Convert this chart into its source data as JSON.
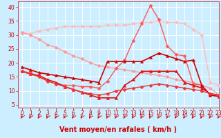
{
  "title": "",
  "xlabel": "Vent moyen/en rafales ( km/h )",
  "bg_color": "#cceeff",
  "grid_color": "#ffffff",
  "xlim": [
    -0.5,
    23
  ],
  "ylim": [
    4,
    42
  ],
  "yticks": [
    5,
    10,
    15,
    20,
    25,
    30,
    35,
    40
  ],
  "xticks": [
    0,
    1,
    2,
    3,
    4,
    5,
    6,
    7,
    8,
    9,
    10,
    11,
    12,
    13,
    14,
    15,
    16,
    17,
    18,
    19,
    20,
    21,
    22,
    23
  ],
  "series": [
    {
      "x": [
        0,
        1,
        2,
        3,
        4,
        5,
        6,
        7,
        8,
        9,
        10,
        11,
        12,
        13,
        14,
        15,
        16,
        17,
        18,
        19,
        20,
        21,
        22,
        23
      ],
      "y": [
        30.5,
        30.5,
        31.5,
        32.0,
        32.5,
        33.0,
        33.0,
        33.0,
        33.0,
        33.0,
        33.5,
        33.5,
        33.5,
        34.0,
        34.5,
        34.5,
        35.0,
        34.5,
        34.5,
        34.0,
        32.0,
        30.0,
        13.0,
        12.0
      ],
      "color": "#ffbbbb",
      "marker": "D",
      "markersize": 2.5,
      "linewidth": 1.0
    },
    {
      "x": [
        0,
        1,
        2,
        3,
        4,
        5,
        6,
        7,
        8,
        9,
        10,
        11,
        12,
        13,
        14,
        15,
        16,
        17,
        18,
        19,
        20,
        21,
        22,
        23
      ],
      "y": [
        31.0,
        30.0,
        28.5,
        26.5,
        25.5,
        24.0,
        22.5,
        21.5,
        20.0,
        19.0,
        18.5,
        18.0,
        17.5,
        17.0,
        16.5,
        16.0,
        15.5,
        15.0,
        14.0,
        13.5,
        13.0,
        12.0,
        11.0,
        8.5
      ],
      "color": "#ff9999",
      "marker": "D",
      "markersize": 2.5,
      "linewidth": 1.0
    },
    {
      "x": [
        0,
        1,
        2,
        3,
        4,
        5,
        6,
        7,
        8,
        9,
        10,
        11,
        12,
        13,
        14,
        15,
        16,
        17,
        18,
        19,
        20,
        21,
        22,
        23
      ],
      "y": [
        17.0,
        16.5,
        15.0,
        13.5,
        12.5,
        12.0,
        12.0,
        11.5,
        11.5,
        11.0,
        13.5,
        18.0,
        21.0,
        28.0,
        34.0,
        40.5,
        35.5,
        26.0,
        23.0,
        22.5,
        12.5,
        12.0,
        8.5,
        8.0
      ],
      "color": "#ff5555",
      "marker": "D",
      "markersize": 2.5,
      "linewidth": 1.0
    },
    {
      "x": [
        0,
        1,
        2,
        3,
        4,
        5,
        6,
        7,
        8,
        9,
        10,
        11,
        12,
        13,
        14,
        15,
        16,
        17,
        18,
        19,
        20,
        21,
        22,
        23
      ],
      "y": [
        18.5,
        17.5,
        16.5,
        16.0,
        15.5,
        15.0,
        14.5,
        14.0,
        13.5,
        13.0,
        20.5,
        20.5,
        20.5,
        20.5,
        20.5,
        22.0,
        23.5,
        22.5,
        21.5,
        20.5,
        21.0,
        12.0,
        8.5,
        8.0
      ],
      "color": "#cc0000",
      "marker": "^",
      "markersize": 3.0,
      "linewidth": 1.2
    },
    {
      "x": [
        0,
        1,
        2,
        3,
        4,
        5,
        6,
        7,
        8,
        9,
        10,
        11,
        12,
        13,
        14,
        15,
        16,
        17,
        18,
        19,
        20,
        21,
        22,
        23
      ],
      "y": [
        17.0,
        16.0,
        15.5,
        14.0,
        13.0,
        11.5,
        10.5,
        9.5,
        8.5,
        7.5,
        7.5,
        7.5,
        12.0,
        14.0,
        17.0,
        17.0,
        17.0,
        17.0,
        17.0,
        13.0,
        12.0,
        11.0,
        9.0,
        8.5
      ],
      "color": "#dd1111",
      "marker": "^",
      "markersize": 3.0,
      "linewidth": 1.2
    },
    {
      "x": [
        0,
        1,
        2,
        3,
        4,
        5,
        6,
        7,
        8,
        9,
        10,
        11,
        12,
        13,
        14,
        15,
        16,
        17,
        18,
        19,
        20,
        21,
        22,
        23
      ],
      "y": [
        17.0,
        16.0,
        15.0,
        13.5,
        12.5,
        11.5,
        10.5,
        9.5,
        9.0,
        8.5,
        9.0,
        10.0,
        10.5,
        11.0,
        11.5,
        12.0,
        12.5,
        12.0,
        11.5,
        11.0,
        10.5,
        10.0,
        9.0,
        8.5
      ],
      "color": "#ee3333",
      "marker": "D",
      "markersize": 2.5,
      "linewidth": 1.0
    }
  ],
  "arrow_color": "#cc0000",
  "xlabel_color": "#cc0000",
  "xlabel_fontsize": 7,
  "tick_color": "#cc0000",
  "tick_fontsize": 5.5
}
